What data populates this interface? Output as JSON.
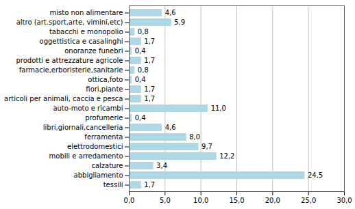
{
  "chart_data": {
    "type": "bar",
    "orientation": "horizontal",
    "categories": [
      "misto non alimentare",
      "altro (art.sport,arte, vimini,etc)",
      "tabacchi e monopolio",
      "oggettistica e casalinghi",
      "onoranze funebri",
      "prodotti e attrezzature agricole",
      "farmacie,erboristerie,sanitarie",
      "ottica,foto",
      "fiori,piante",
      "articoli per animali, caccia e pesca",
      "auto-moto e ricambi",
      "profumerie",
      "libri,giornali,cancelleria",
      "ferramenta",
      "elettrodomestici",
      "mobili e arredamento",
      "calzature",
      "abbigliamento",
      "tessili"
    ],
    "values": [
      4.6,
      5.9,
      0.8,
      1.7,
      0.4,
      1.7,
      0.8,
      0.4,
      1.7,
      1.7,
      11.0,
      0.4,
      4.6,
      8.0,
      9.7,
      12.2,
      3.4,
      24.5,
      1.7
    ],
    "value_labels": [
      "4,6",
      "5,9",
      "0,8",
      "1,7",
      "0,4",
      "1,7",
      "0,8",
      "0,4",
      "1,7",
      "1,7",
      "11,0",
      "0,4",
      "4,6",
      "8,0",
      "9,7",
      "12,2",
      "3,4",
      "24,5",
      "1,7"
    ],
    "data_labels": true,
    "color": "#add8e6",
    "xlim": [
      0,
      30
    ],
    "xticks": [
      {
        "value": 0,
        "label": "0,0"
      },
      {
        "value": 5,
        "label": "5,0"
      },
      {
        "value": 10,
        "label": "10,0"
      },
      {
        "value": 15,
        "label": "15,0"
      },
      {
        "value": 20,
        "label": "20,0"
      },
      {
        "value": 25,
        "label": "25,0"
      },
      {
        "value": 30,
        "label": "30,0"
      }
    ],
    "grid": true
  }
}
